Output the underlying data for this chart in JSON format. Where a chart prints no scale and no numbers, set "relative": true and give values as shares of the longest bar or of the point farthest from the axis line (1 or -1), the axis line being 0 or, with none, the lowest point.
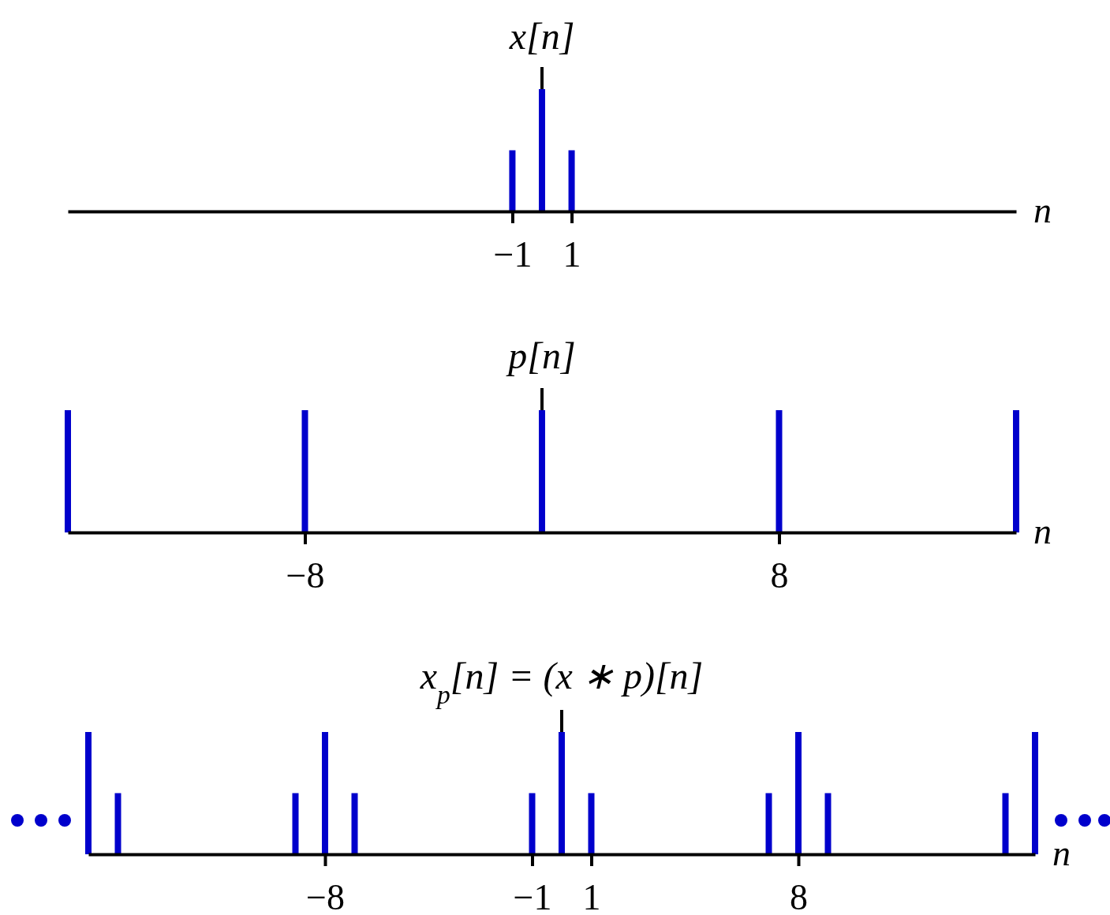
{
  "chart_data": [
    {
      "type": "bar",
      "title": "x[n]",
      "xlabel": "n",
      "relative": true,
      "x": [
        -1,
        0,
        1
      ],
      "xlim": [
        -16,
        16
      ],
      "xticks": [
        -1,
        1
      ],
      "series": [
        {
          "color": "#0000cc",
          "values": [
            0.5,
            1,
            0.5
          ]
        }
      ]
    },
    {
      "type": "bar",
      "title": "p[n]",
      "xlabel": "n",
      "relative": true,
      "x": [
        -16,
        -8,
        0,
        8,
        16
      ],
      "xlim": [
        -16,
        16
      ],
      "xticks": [
        -8,
        8
      ],
      "series": [
        {
          "color": "#0000cc",
          "values": [
            1,
            1,
            1,
            1,
            1
          ]
        }
      ]
    },
    {
      "type": "bar",
      "title": "x$_{p}$[n] = (x ∗ p)[n]",
      "xlabel": "n",
      "relative": true,
      "x": [
        -16,
        -15,
        -9,
        -8,
        -7,
        -1,
        0,
        1,
        7,
        8,
        9,
        15,
        16
      ],
      "xlim": [
        -16,
        16
      ],
      "xticks": [
        -8,
        -1,
        1,
        8
      ],
      "series": [
        {
          "color": "#0000cc",
          "values": [
            1,
            0.5,
            0.5,
            1,
            0.5,
            0.5,
            1,
            0.5,
            0.5,
            1,
            0.5,
            0.5,
            1
          ]
        }
      ]
    }
  ]
}
